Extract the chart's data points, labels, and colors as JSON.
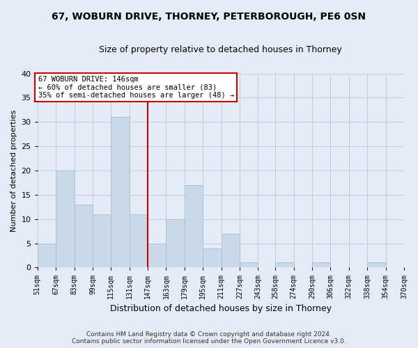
{
  "title_line1": "67, WOBURN DRIVE, THORNEY, PETERBOROUGH, PE6 0SN",
  "title_line2": "Size of property relative to detached houses in Thorney",
  "xlabel": "Distribution of detached houses by size in Thorney",
  "ylabel": "Number of detached properties",
  "footnote1": "Contains HM Land Registry data © Crown copyright and database right 2024.",
  "footnote2": "Contains public sector information licensed under the Open Government Licence v3.0.",
  "bins_left": [
    51,
    67,
    83,
    99,
    115,
    131,
    147,
    163,
    179,
    195,
    211,
    227,
    243,
    258,
    274,
    290,
    306,
    322,
    338,
    354
  ],
  "counts": [
    5,
    20,
    13,
    11,
    31,
    11,
    5,
    10,
    17,
    4,
    7,
    1,
    0,
    1,
    0,
    1,
    0,
    0,
    1,
    0
  ],
  "bin_width": 16,
  "last_tick": 370,
  "bar_color": "#c9d9e8",
  "bar_edge_color": "#a8bcd0",
  "grid_color": "#b8c8dc",
  "property_line_x": 147,
  "property_line_color": "#cc0000",
  "annotation_text_line1": "67 WOBURN DRIVE: 146sqm",
  "annotation_text_line2": "← 60% of detached houses are smaller (83)",
  "annotation_text_line3": "35% of semi-detached houses are larger (48) →",
  "annotation_box_color": "#ffffff",
  "annotation_box_edge_color": "#cc0000",
  "ylim": [
    0,
    40
  ],
  "yticks": [
    0,
    5,
    10,
    15,
    20,
    25,
    30,
    35,
    40
  ],
  "bg_color": "#e4edf7",
  "title1_fontsize": 10,
  "title2_fontsize": 9,
  "ylabel_fontsize": 8,
  "xlabel_fontsize": 9
}
